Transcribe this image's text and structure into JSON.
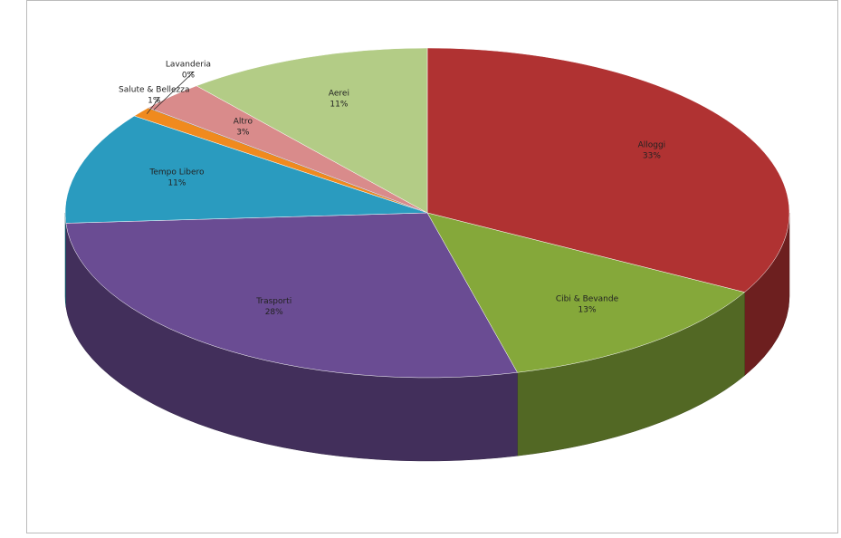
{
  "chart_data": {
    "type": "pie3d",
    "categories": [
      "Alloggi",
      "Cibi & Bevande",
      "Trasporti",
      "Tempo Libero",
      "Salute & Bellezza",
      "Lavanderia",
      "Altro",
      "Aerei"
    ],
    "values": [
      33,
      13,
      28,
      11,
      1,
      0,
      3,
      11
    ],
    "value_labels": [
      "33%",
      "13%",
      "28%",
      "11%",
      "1%",
      "0%",
      "3%",
      "11%"
    ],
    "colors": [
      "#b03232",
      "#85a83a",
      "#6a4c93",
      "#2a9bbf",
      "#f08a1e",
      "#4f81bd",
      "#d98b8b",
      "#b3cc86"
    ]
  }
}
